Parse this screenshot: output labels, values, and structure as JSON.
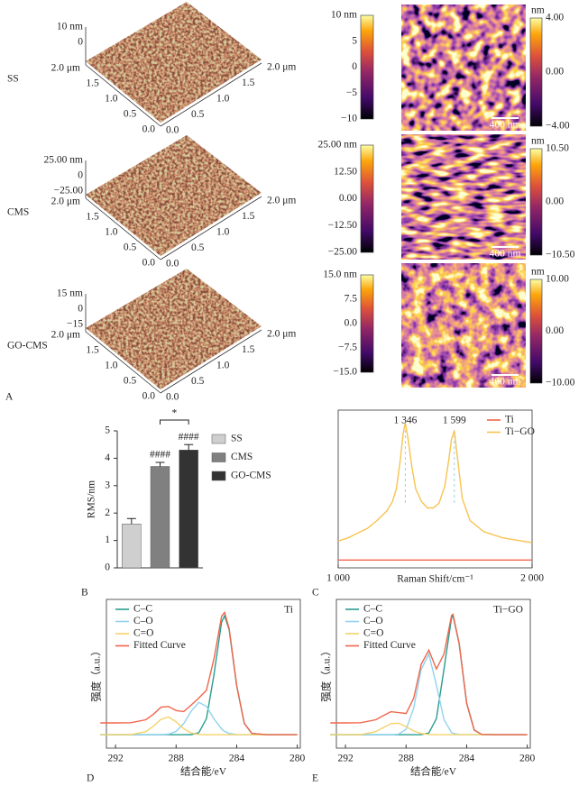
{
  "figure": {
    "panel_labels": [
      "A",
      "B",
      "C",
      "D",
      "E"
    ],
    "afm": {
      "samples": [
        {
          "name": "SS",
          "z_labels": [
            "10 nm",
            "0"
          ],
          "y_axis_labels": [
            "2.0 μm",
            "1.5",
            "1.0",
            "0.5",
            "0.0"
          ],
          "x_axis_labels": [
            "0.0",
            "0.5",
            "1.0",
            "1.5",
            "2.0 μm"
          ],
          "colorbar_3d": [
            "10 nm",
            "5",
            "0",
            "−5",
            "−10"
          ],
          "colorbar_map": [
            "nm",
            "4.00",
            "0.00",
            "−4.00"
          ],
          "scale_bar": "400 nm"
        },
        {
          "name": "CMS",
          "z_labels": [
            "25.00 nm",
            "0",
            "−25.00"
          ],
          "y_axis_labels": [
            "2.0 μm",
            "1.5",
            "1.0",
            "0.5",
            "0.0"
          ],
          "x_axis_labels": [
            "0.0",
            "0.5",
            "1.0",
            "1.5",
            "2.0 μm"
          ],
          "colorbar_3d": [
            "25.00 nm",
            "12.50",
            "0.00",
            "−12.50",
            "−25.00"
          ],
          "colorbar_map": [
            "nm",
            "10.50",
            "0.00",
            "−10.50"
          ],
          "scale_bar": "400 nm"
        },
        {
          "name": "GO-CMS",
          "z_labels": [
            "15 nm",
            "0",
            "−15"
          ],
          "y_axis_labels": [
            "2.0 μm",
            "1.5",
            "1.0",
            "0.5",
            "0.0"
          ],
          "x_axis_labels": [
            "0.0",
            "0.5",
            "1.0",
            "1.5",
            "2.0 μm"
          ],
          "colorbar_3d": [
            "15.0 nm",
            "7.5",
            "0.0",
            "−7.5",
            "−15.0"
          ],
          "colorbar_map": [
            "nm",
            "10.00",
            "0.00",
            "−10.00"
          ],
          "scale_bar": "400 nm"
        }
      ]
    }
  },
  "chart_data": [
    {
      "type": "bar",
      "y_label": "RMS/nm",
      "categories": [
        "SS",
        "CMS",
        "GO-CMS"
      ],
      "values": [
        1.6,
        3.7,
        4.3
      ],
      "errors": [
        0.2,
        0.15,
        0.2
      ],
      "colors": [
        "#cfcfcf",
        "#808080",
        "#333333"
      ],
      "ylim": [
        0,
        5
      ],
      "yticks": [
        0,
        1,
        2,
        3,
        4,
        5
      ],
      "annotations": [
        "####",
        "####",
        "*"
      ],
      "legend": "right"
    },
    {
      "type": "line",
      "x_label": "Raman Shift/cm⁻¹",
      "xlim": [
        1000,
        2000
      ],
      "xticks": [
        {
          "value": 1000,
          "label": "1 000"
        },
        {
          "value": 2000,
          "label": "2 000"
        }
      ],
      "ylim": [
        0,
        100
      ],
      "x": [
        1000,
        1050,
        1100,
        1150,
        1200,
        1250,
        1280,
        1300,
        1320,
        1335,
        1346,
        1360,
        1380,
        1400,
        1430,
        1460,
        1490,
        1520,
        1550,
        1570,
        1585,
        1599,
        1615,
        1640,
        1680,
        1750,
        1850,
        1950,
        2000
      ],
      "series": [
        {
          "name": "Ti",
          "color": "#f0664c",
          "values": [
            5,
            5,
            5,
            5,
            5,
            5,
            5,
            5,
            5,
            5,
            5,
            5,
            5,
            5,
            5,
            5,
            5,
            5,
            5,
            5,
            5,
            5,
            5,
            5,
            5,
            5,
            5,
            5,
            5
          ]
        },
        {
          "name": "Ti−GO",
          "color": "#f7c352",
          "values": [
            17,
            19,
            22,
            25,
            30,
            36,
            42,
            50,
            68,
            85,
            92,
            82,
            64,
            50,
            42,
            38,
            38,
            41,
            52,
            68,
            82,
            87,
            70,
            44,
            30,
            23,
            19,
            17,
            16
          ]
        }
      ],
      "annotations": [
        {
          "value": 1346,
          "label": "1 346"
        },
        {
          "value": 1599,
          "label": "1 599"
        }
      ],
      "legend": "upper right"
    },
    {
      "type": "line",
      "label": "Ti",
      "x_label": "结合能/eV",
      "y_label": "强度（a.u.）",
      "xlim": [
        292.6,
        279.8
      ],
      "xticks": [
        292,
        288,
        284,
        280
      ],
      "ylim": [
        0,
        100
      ],
      "x": [
        293,
        292,
        291,
        290,
        289.5,
        289,
        288.5,
        288,
        287.5,
        287,
        286.5,
        286,
        285.5,
        285,
        284.8,
        284.5,
        284,
        283.5,
        283,
        282,
        281,
        280
      ],
      "series": [
        {
          "name": "C–C",
          "color": "#2a9d8f",
          "values": [
            9,
            9,
            9,
            9,
            9,
            9,
            9,
            9,
            9,
            9.1,
            10.4,
            19.8,
            49.5,
            84.7,
            89,
            79.6,
            41.8,
            16.6,
            9.9,
            9,
            9,
            9
          ]
        },
        {
          "name": "C–O",
          "color": "#8fd3ee",
          "values": [
            9,
            9,
            9,
            9,
            9,
            9.1,
            9.4,
            11.3,
            16.5,
            25,
            30.8,
            28.1,
            19.7,
            12.9,
            11.3,
            9.9,
            9.1,
            9,
            9,
            9,
            9,
            9
          ]
        },
        {
          "name": "C=O",
          "color": "#f5d26a",
          "values": [
            9,
            9,
            9.1,
            11.1,
            14.8,
            19.4,
            20.9,
            17.7,
            13.1,
            10.2,
            9.2,
            9,
            9,
            9,
            9,
            9,
            9,
            9,
            9,
            9,
            9,
            9
          ]
        },
        {
          "name": "Fitted Curve",
          "color": "#f0664c",
          "values": [
            17,
            17,
            17.1,
            19.1,
            22.8,
            27.5,
            28,
            25.3,
            24.6,
            29,
            33.7,
            38.9,
            60.2,
            88.6,
            91.3,
            80.5,
            41.9,
            16.6,
            9.9,
            9,
            9,
            9
          ]
        }
      ],
      "legend": "upper left"
    },
    {
      "type": "line",
      "label": "Ti−GO",
      "x_label": "结合能/eV",
      "y_label": "强度（a.u.）",
      "xlim": [
        292.6,
        279.8
      ],
      "xticks": [
        292,
        288,
        284,
        280
      ],
      "ylim": [
        0,
        100
      ],
      "x": [
        293,
        292,
        291,
        290,
        289.5,
        289,
        288.5,
        288,
        287.5,
        287,
        286.5,
        286,
        285.5,
        285,
        284.9,
        284.5,
        284,
        283.5,
        283,
        282,
        281,
        280
      ],
      "series": [
        {
          "name": "C–C",
          "color": "#2a9d8f",
          "values": [
            9,
            9,
            9,
            9,
            9,
            9,
            9,
            9,
            9,
            9,
            10.2,
            19.8,
            53,
            87.7,
            89,
            70.4,
            30,
            12.1,
            9.2,
            9,
            9,
            9
          ]
        },
        {
          "name": "C–O",
          "color": "#8fd3ee",
          "values": [
            9,
            9,
            9,
            9,
            9,
            9,
            9.4,
            12.6,
            26.9,
            53,
            63.2,
            42.4,
            19.2,
            10.5,
            10,
            9.1,
            9,
            9,
            9,
            9,
            9,
            9
          ]
        },
        {
          "name": "C=O",
          "color": "#f5d26a",
          "values": [
            9,
            9,
            9.1,
            11.1,
            13.9,
            16.5,
            16.8,
            14.4,
            11.6,
            9.8,
            9.2,
            9,
            9,
            9,
            9,
            9,
            9,
            9,
            9,
            9,
            9,
            9
          ]
        },
        {
          "name": "Fitted Curve",
          "color": "#f0664c",
          "values": [
            17,
            17,
            17.1,
            19.1,
            21.9,
            24.5,
            23.9,
            23.3,
            33.5,
            56.5,
            65.9,
            53.2,
            63.2,
            89.2,
            90,
            70.5,
            30,
            12.1,
            9.2,
            9,
            9,
            9
          ]
        }
      ],
      "legend": "upper left"
    }
  ]
}
